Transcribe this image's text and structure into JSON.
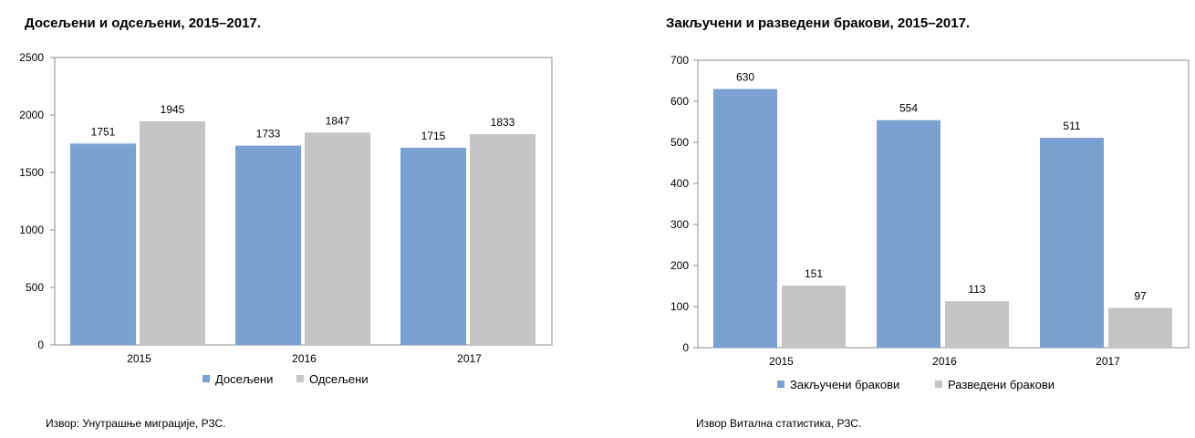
{
  "chart_data": [
    {
      "type": "bar",
      "title": "Досељени и одсељени, 2015–2017.",
      "categories": [
        "2015",
        "2016",
        "2017"
      ],
      "series": [
        {
          "name": "Досељени",
          "values": [
            1751,
            1733,
            1715
          ],
          "color": "#7ba1d3"
        },
        {
          "name": "Одсељени",
          "values": [
            1945,
            1847,
            1833
          ],
          "color": "#c5c5c5"
        }
      ],
      "ylim": [
        0,
        2500
      ],
      "yticks": [
        "0",
        "500",
        "1000",
        "1500",
        "2000",
        "2500"
      ],
      "grid": false,
      "legend": "bottom",
      "source": "Извор: Унутрашње миграције, РЗС."
    },
    {
      "type": "bar",
      "title": "Закључени и разведени бракови, 2015–2017.",
      "categories": [
        "2015",
        "2016",
        "2017"
      ],
      "series": [
        {
          "name": "Закључени бракови",
          "values": [
            630,
            554,
            511
          ],
          "color": "#7ba1d3"
        },
        {
          "name": "Разведени бракови",
          "values": [
            151,
            113,
            97
          ],
          "color": "#c5c5c5"
        }
      ],
      "ylim": [
        0,
        700
      ],
      "yticks": [
        "0",
        "100",
        "200",
        "300",
        "400",
        "500",
        "600",
        "700"
      ],
      "grid": false,
      "legend": "bottom",
      "source": "Извор Витална статистика, РЗС."
    }
  ]
}
